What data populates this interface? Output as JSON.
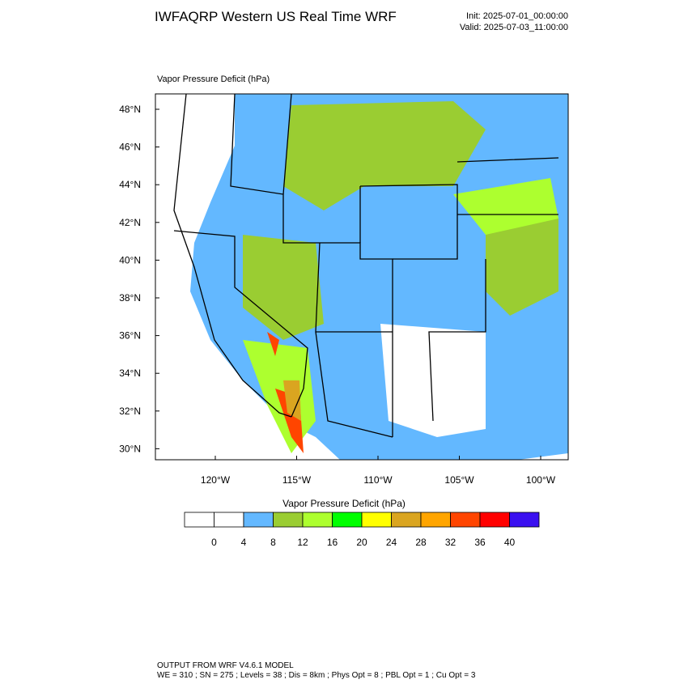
{
  "header": {
    "title": "IWFAQRP Western US Real Time WRF",
    "init": "Init: 2025-07-01_00:00:00",
    "valid": "Valid: 2025-07-03_11:00:00"
  },
  "map": {
    "title": "Vapor Pressure Deficit   (hPa)",
    "lat_labels": [
      "48°N",
      "46°N",
      "44°N",
      "42°N",
      "40°N",
      "38°N",
      "36°N",
      "34°N",
      "32°N",
      "30°N"
    ],
    "lon_labels": [
      "120°W",
      "115°W",
      "110°W",
      "105°W",
      "100°W"
    ]
  },
  "colorbar": {
    "title": "Vapor Pressure Deficit  (hPa)",
    "levels": [
      0,
      4,
      8,
      12,
      16,
      20,
      24,
      28,
      32,
      36,
      40
    ],
    "colors": [
      "#ffffff",
      "#ffffff",
      "#63b8ff",
      "#9acd32",
      "#adff2f",
      "#00ff00",
      "#ffff00",
      "#daa520",
      "#ffa500",
      "#ff4500",
      "#ff0000",
      "#3a10f0"
    ]
  },
  "footer": {
    "line1": "OUTPUT FROM WRF V4.6.1 MODEL",
    "line2": "WE = 310 ; SN = 275 ; Levels = 38 ; Dis = 8km ; Phys Opt = 8 ; PBL Opt = 1 ; Cu Opt = 3"
  }
}
